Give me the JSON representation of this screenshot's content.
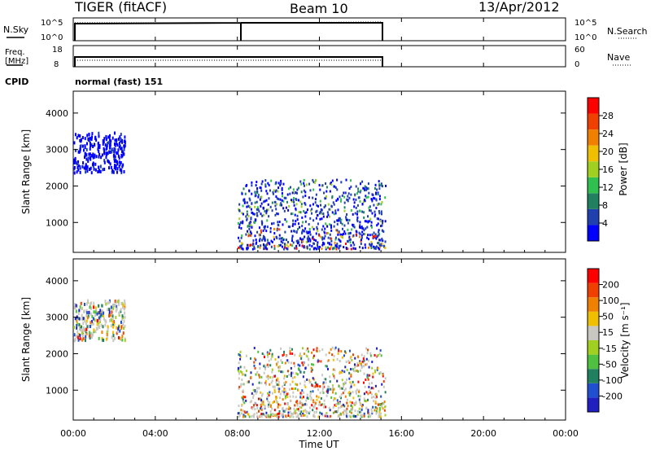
{
  "header": {
    "left": "TIGER (fitACF)",
    "center": "Beam 10",
    "right": "13/Apr/2012"
  },
  "nsky_panel": {
    "label": "N.Sky",
    "left_ticks": [
      "10^5",
      "10^0"
    ],
    "right_ticks": [
      "10^5",
      "10^0"
    ],
    "right_label": "N.Search"
  },
  "freq_panel": {
    "label_line1": "Freq.",
    "label_line2": "[MHz]",
    "left_ticks": [
      "18",
      "8"
    ],
    "right_ticks": [
      "60",
      "0"
    ],
    "right_label": "Nave"
  },
  "cpid": {
    "label": "CPID",
    "text": "normal (fast) 151"
  },
  "x_axis": {
    "label": "Time UT",
    "ticks": [
      "00:00",
      "04:00",
      "08:00",
      "12:00",
      "16:00",
      "20:00",
      "00:00"
    ],
    "tick_hours": [
      0,
      4,
      8,
      12,
      16,
      20,
      24
    ]
  },
  "power_panel": {
    "ylabel": "Slant Range [km]",
    "yticks": [
      "1000",
      "2000",
      "3000",
      "4000"
    ],
    "ytick_values": [
      1000,
      2000,
      3000,
      4000
    ],
    "colorbar_label": "Power [dB]",
    "colorbar_ticks": [
      "4",
      "8",
      "12",
      "16",
      "20",
      "24",
      "28"
    ],
    "colors": [
      "#0000ff",
      "#2040b0",
      "#208060",
      "#30c050",
      "#a0d020",
      "#f0c000",
      "#f08000",
      "#f04000",
      "#ff0000"
    ]
  },
  "velocity_panel": {
    "ylabel": "Slant Range [km]",
    "yticks": [
      "1000",
      "2000",
      "3000",
      "4000"
    ],
    "ytick_values": [
      1000,
      2000,
      3000,
      4000
    ],
    "colorbar_label": "Velocity [m s⁻¹]",
    "colorbar_ticks": [
      "200",
      "100",
      "50",
      "15",
      "-15",
      "-50",
      "-100",
      "-200"
    ],
    "colors": [
      "#2020c0",
      "#2050d0",
      "#208060",
      "#50c040",
      "#a0d020",
      "#c8c8c0",
      "#f0c000",
      "#f08000",
      "#f04000",
      "#ff0000"
    ]
  },
  "chart_data": {
    "type": "heatmap",
    "title": "TIGER (fitACF)  Beam 10  13/Apr/2012",
    "xlabel": "Time UT",
    "ylabel": "Slant Range [km]",
    "xlim_hours": [
      0,
      24
    ],
    "ylim_km": [
      180,
      4600
    ],
    "operating_hours": [
      0,
      15.2
    ],
    "frequency_step_hour": 8,
    "scatter_regions": [
      {
        "t_start": 0,
        "t_end": 2.5,
        "r_start": 2400,
        "r_end": 3500,
        "level": "low power, mixed velocity"
      },
      {
        "t_start": 8,
        "t_end": 15.2,
        "r_start": 300,
        "r_end": 2200,
        "level": "mixed power, high at lower ranges"
      }
    ]
  }
}
